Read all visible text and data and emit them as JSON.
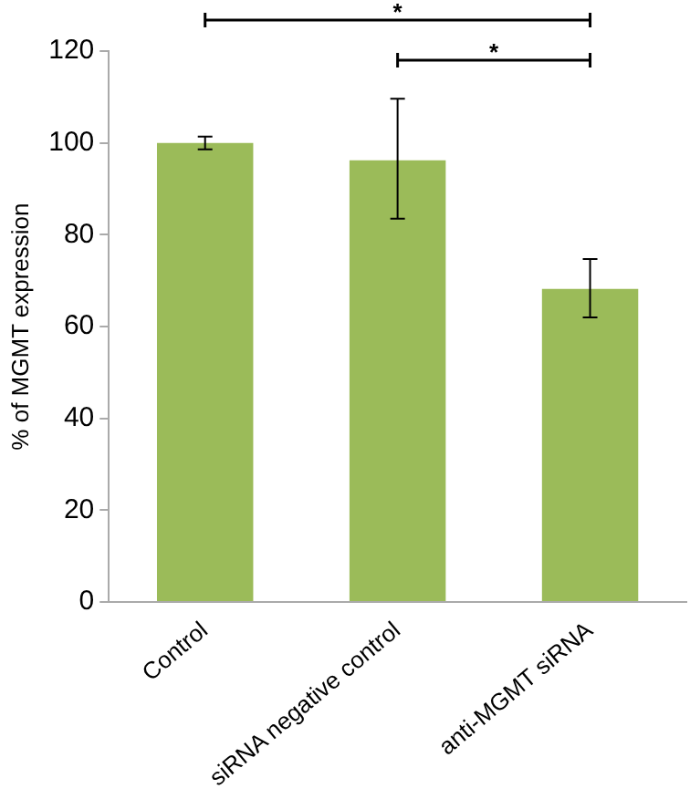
{
  "chart_data": {
    "type": "bar",
    "ylabel": "% of MGMT expression",
    "categories": [
      "Control",
      "siRNA negative control",
      "anti-MGMT siRNA"
    ],
    "values": [
      100,
      96.2,
      68.2
    ],
    "errors": [
      1.4,
      [
        83.5,
        109.6
      ],
      [
        62,
        74.7
      ]
    ],
    "color": "#9bbb59",
    "ylim": [
      0,
      120
    ],
    "yticks": [
      0,
      20,
      40,
      60,
      80,
      100,
      120
    ],
    "grid": false,
    "legend": false,
    "annotations": [
      "*",
      "*"
    ]
  }
}
